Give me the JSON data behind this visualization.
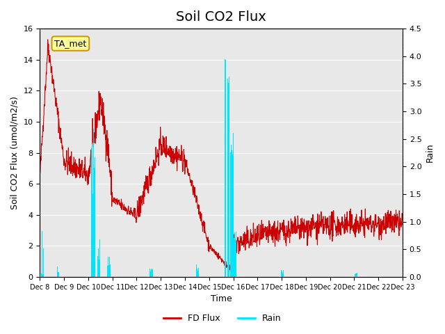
{
  "title": "Soil CO2 Flux",
  "ylabel_left": "Soil CO2 Flux (umol/m2/s)",
  "ylabel_right": "Rain",
  "xlabel": "Time",
  "ylim_left": [
    0,
    16
  ],
  "ylim_right": [
    0,
    4.5
  ],
  "yticks_left": [
    0,
    2,
    4,
    6,
    8,
    10,
    12,
    14,
    16
  ],
  "yticks_right": [
    0.0,
    0.5,
    1.0,
    1.5,
    2.0,
    2.5,
    3.0,
    3.5,
    4.0,
    4.5
  ],
  "flux_color": "#cc0000",
  "rain_color": "#00e5ff",
  "annotation_text": "TA_met",
  "annotation_color": "#ffff99",
  "annotation_border": "#cc9900",
  "legend_flux": "FD Flux",
  "legend_rain": "Rain",
  "background_color": "#e8e8e8",
  "xtick_labels": [
    "Dec 8",
    "Dec 9",
    "Dec 10",
    "Dec 11",
    "Dec 12",
    "Dec 13",
    "Dec 14",
    "Dec 15",
    "Dec 16",
    "Dec 17",
    "Dec 18",
    "Dec 19",
    "Dec 20",
    "Dec 21",
    "Dec 22",
    "Dec 23"
  ],
  "title_fontsize": 14,
  "total_days": 15
}
